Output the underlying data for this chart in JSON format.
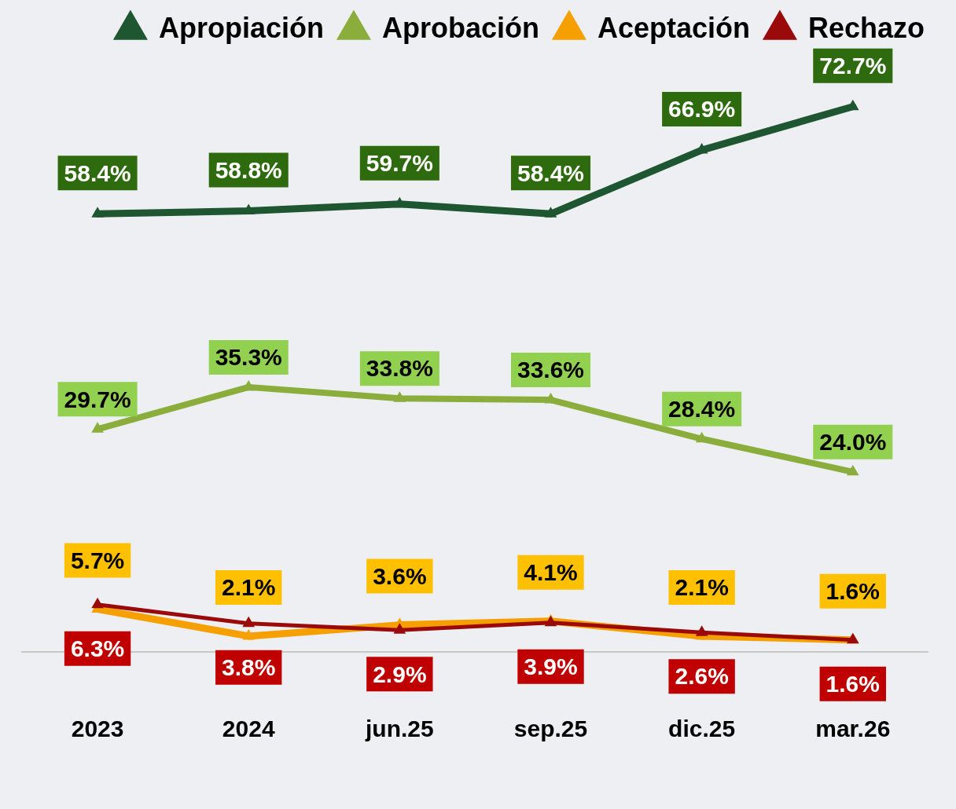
{
  "chart_data": {
    "type": "line",
    "categories": [
      "2023",
      "2024",
      "jun.25",
      "sep.25",
      "dic.25",
      "mar.26"
    ],
    "series": [
      {
        "name": "Apropiación",
        "color": "#1e5631",
        "values": [
          58.4,
          58.8,
          59.7,
          58.4,
          66.9,
          72.7
        ],
        "value_labels": [
          "58.4%",
          "58.8%",
          "59.7%",
          "58.4%",
          "66.9%",
          "72.7%"
        ]
      },
      {
        "name": "Aprobación",
        "color": "#8aad3b",
        "values": [
          29.7,
          35.3,
          33.8,
          33.6,
          28.4,
          24.0
        ],
        "value_labels": [
          "29.7%",
          "35.3%",
          "33.8%",
          "33.6%",
          "28.4%",
          "24.0%"
        ]
      },
      {
        "name": "Aceptación",
        "color": "#f5a000",
        "values": [
          5.7,
          2.1,
          3.6,
          4.1,
          2.1,
          1.6
        ],
        "value_labels": [
          "5.7%",
          "2.1%",
          "3.6%",
          "4.1%",
          "2.1%",
          "1.6%"
        ]
      },
      {
        "name": "Rechazo",
        "color": "#9b0a0a",
        "values": [
          6.3,
          3.8,
          2.9,
          3.9,
          2.6,
          1.6
        ],
        "value_labels": [
          "6.3%",
          "3.8%",
          "2.9%",
          "3.9%",
          "2.6%",
          "1.6%"
        ]
      }
    ],
    "tick_labels": "x",
    "grid": false,
    "legend": "top",
    "marker": "triangle",
    "line_style": "solid"
  }
}
